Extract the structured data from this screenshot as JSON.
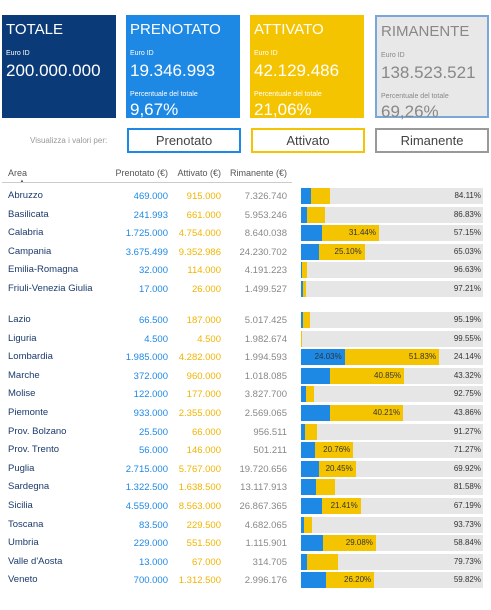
{
  "cards": [
    {
      "title": "TOTALE",
      "subtitle": "Euro ID",
      "value": "200.000.000"
    },
    {
      "title": "PRENOTATO",
      "subtitle": "Euro ID",
      "value": "19.346.993",
      "pct_label": "Percentuale del totale",
      "pct": "9,67%"
    },
    {
      "title": "ATTIVATO",
      "subtitle": "Euro ID",
      "value": "42.129.486",
      "pct_label": "Percentuale del totale",
      "pct": "21,06%"
    },
    {
      "title": "RIMANENTE",
      "subtitle": "Euro ID",
      "value": "138.523.521",
      "pct_label": "Percentuale del totale",
      "pct": "69,26%"
    }
  ],
  "controls": {
    "label": "Visualizza i valori per:",
    "buttons": [
      "Prenotato",
      "Attivato",
      "Rimanente"
    ]
  },
  "table": {
    "columns": [
      "Area",
      "Prenotato (€)",
      "Attivato (€)",
      "Rimanente (€)"
    ],
    "rows": [
      [
        "Abruzzo",
        "469.000",
        "915.000",
        "7.326.740"
      ],
      [
        "Basilicata",
        "241.993",
        "661.000",
        "5.953.246"
      ],
      [
        "Calabria",
        "1.725.000",
        "4.754.000",
        "8.640.038"
      ],
      [
        "Campania",
        "3.675.499",
        "9.352.986",
        "24.230.702"
      ],
      [
        "Emilia-Romagna",
        "32.000",
        "114.000",
        "4.191.223"
      ],
      [
        "Friuli-Venezia Giulia",
        "17.000",
        "26.000",
        "1.499.527"
      ],
      [
        "Lazio",
        "66.500",
        "187.000",
        "5.017.425"
      ],
      [
        "Liguria",
        "4.500",
        "4.500",
        "1.982.674"
      ],
      [
        "Lombardia",
        "1.985.000",
        "4.282.000",
        "1.994.593"
      ],
      [
        "Marche",
        "372.000",
        "960.000",
        "1.018.085"
      ],
      [
        "Molise",
        "122.000",
        "177.000",
        "3.827.700"
      ],
      [
        "Piemonte",
        "933.000",
        "2.355.000",
        "2.569.065"
      ],
      [
        "Prov. Bolzano",
        "25.500",
        "66.000",
        "956.511"
      ],
      [
        "Prov. Trento",
        "56.000",
        "146.000",
        "501.211"
      ],
      [
        "Puglia",
        "2.715.000",
        "5.767.000",
        "19.720.656"
      ],
      [
        "Sardegna",
        "1.322.500",
        "1.638.500",
        "13.117.913"
      ],
      [
        "Sicilia",
        "4.559.000",
        "8.563.000",
        "26.867.365"
      ],
      [
        "Toscana",
        "83.500",
        "229.500",
        "4.682.065"
      ],
      [
        "Umbria",
        "229.000",
        "551.500",
        "1.115.901"
      ],
      [
        "Valle d'Aosta",
        "13.000",
        "67.000",
        "314.705"
      ],
      [
        "Veneto",
        "700.000",
        "1.312.500",
        "2.996.176"
      ]
    ],
    "bar_labels": [
      {
        "rimanente": "84.11%"
      },
      {
        "rimanente": "86.83%"
      },
      {
        "attivato": "31.44%",
        "rimanente": "57.15%"
      },
      {
        "attivato": "25.10%",
        "rimanente": "65.03%"
      },
      {
        "rimanente": "96.63%"
      },
      {
        "rimanente": "97.21%"
      },
      {
        "rimanente": "95.19%"
      },
      {
        "rimanente": "99.55%"
      },
      {
        "prenotato": "24.03%",
        "attivato": "51.83%",
        "rimanente": "24.14%"
      },
      {
        "attivato": "40.85%",
        "rimanente": "43.32%"
      },
      {
        "rimanente": "92.75%"
      },
      {
        "attivato": "40.21%",
        "rimanente": "43.86%"
      },
      {
        "rimanente": "91.27%"
      },
      {
        "attivato": "20.76%",
        "rimanente": "71.27%"
      },
      {
        "attivato": "20.45%",
        "rimanente": "69.92%"
      },
      {
        "rimanente": "81.58%"
      },
      {
        "attivato": "21.41%",
        "rimanente": "67.19%"
      },
      {
        "rimanente": "93.73%"
      },
      {
        "attivato": "29.08%",
        "rimanente": "58.84%"
      },
      {
        "rimanente": "79.73%"
      },
      {
        "attivato": "26.20%",
        "rimanente": "59.82%"
      }
    ]
  }
}
